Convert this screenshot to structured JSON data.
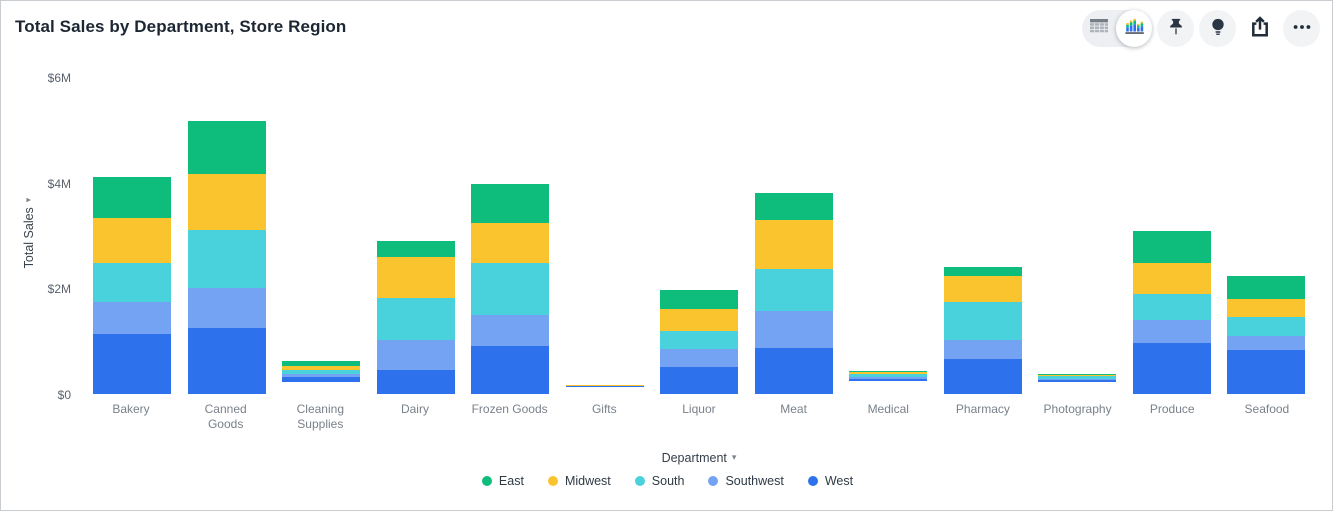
{
  "header": {
    "title": "Total Sales by Department, Store Region"
  },
  "toolbar": {
    "selected_view": "chart",
    "icons": [
      "table-view-icon",
      "chart-view-icon",
      "pin-icon",
      "lightbulb-icon",
      "share-icon",
      "ellipsis-icon"
    ]
  },
  "chart_data": {
    "type": "bar",
    "subtype": "stacked-vertical",
    "title": "Total Sales by Department, Store Region",
    "xlabel": "Department",
    "ylabel": "Total Sales",
    "unit": "USD millions",
    "ylim_millions": [
      0,
      6
    ],
    "y_ticks": [
      {
        "label": "$0",
        "value": 0
      },
      {
        "label": "$2M",
        "value": 2
      },
      {
        "label": "$4M",
        "value": 4
      },
      {
        "label": "$6M",
        "value": 6
      }
    ],
    "grid": false,
    "legend_position": "bottom-center",
    "categories": [
      "Bakery",
      "Canned Goods",
      "Cleaning Supplies",
      "Dairy",
      "Frozen Goods",
      "Gifts",
      "Liquor",
      "Meat",
      "Medical",
      "Pharmacy",
      "Photography",
      "Produce",
      "Seafood"
    ],
    "stack_order_top_to_bottom": [
      "East",
      "Midwest",
      "South",
      "Southwest",
      "West"
    ],
    "series": [
      {
        "name": "East",
        "color": "#0EBC7C",
        "values": [
          0.77,
          1.0,
          0.15,
          0.3,
          0.73,
          0.04,
          0.37,
          0.5,
          0.05,
          0.18,
          0.03,
          0.6,
          0.45
        ]
      },
      {
        "name": "Midwest",
        "color": "#FAC42F",
        "values": [
          0.86,
          1.06,
          0.12,
          0.78,
          0.76,
          0.03,
          0.41,
          0.93,
          0.08,
          0.49,
          0.08,
          0.59,
          0.34
        ]
      },
      {
        "name": "South",
        "color": "#49D2DC",
        "values": [
          0.74,
          1.09,
          0.13,
          0.79,
          0.99,
          0.03,
          0.33,
          0.8,
          0.13,
          0.71,
          0.13,
          0.49,
          0.35
        ]
      },
      {
        "name": "Southwest",
        "color": "#74A3F3",
        "values": [
          0.61,
          0.76,
          0.1,
          0.58,
          0.59,
          0.03,
          0.35,
          0.69,
          0.08,
          0.37,
          0.08,
          0.44,
          0.27
        ]
      },
      {
        "name": "West",
        "color": "#2D72EC",
        "values": [
          1.13,
          1.25,
          0.13,
          0.45,
          0.9,
          0.04,
          0.51,
          0.88,
          0.1,
          0.66,
          0.06,
          0.96,
          0.83
        ]
      }
    ],
    "category_totals_millions": [
      4.11,
      5.16,
      0.63,
      2.9,
      3.97,
      0.17,
      1.97,
      3.8,
      0.44,
      2.41,
      0.38,
      3.08,
      2.24
    ]
  },
  "legend": {
    "items": [
      {
        "label": "East",
        "color": "#0EBC7C"
      },
      {
        "label": "Midwest",
        "color": "#FAC42F"
      },
      {
        "label": "South",
        "color": "#49D2DC"
      },
      {
        "label": "Southwest",
        "color": "#74A3F3"
      },
      {
        "label": "West",
        "color": "#2D72EC"
      }
    ]
  }
}
